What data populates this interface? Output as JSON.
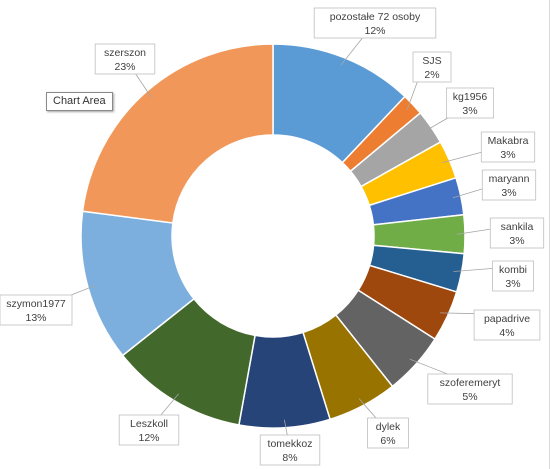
{
  "chart_area": {
    "tooltip": "Chart Area"
  },
  "chart_data": {
    "type": "pie",
    "variant": "donut",
    "labels": [
      "pozostałe 72 osoby",
      "SJS",
      "kg1956",
      "Makabra",
      "maryann",
      "sankila",
      "kombi",
      "papadrive",
      "szoferemeryt",
      "dylek",
      "tomekkoz",
      "Leszkoll",
      "szymon1977",
      "szerszon"
    ],
    "percent_labels": [
      "12%",
      "2%",
      "3%",
      "3%",
      "3%",
      "3%",
      "3%",
      "4%",
      "5%",
      "6%",
      "8%",
      "12%",
      "13%",
      "23%"
    ],
    "values": [
      12.3,
      1.9,
      3.0,
      3.3,
      3.2,
      3.3,
      3.3,
      4.4,
      5.4,
      6.0,
      7.8,
      11.7,
      13.0,
      23.4
    ],
    "colors": [
      "#5b9bd5",
      "#ed7d31",
      "#a5a5a5",
      "#ffc000",
      "#4472c4",
      "#70ad47",
      "#255e91",
      "#9e480e",
      "#636363",
      "#997300",
      "#264478",
      "#43682b",
      "#7cafdd",
      "#f1975a"
    ],
    "legend": "none"
  }
}
